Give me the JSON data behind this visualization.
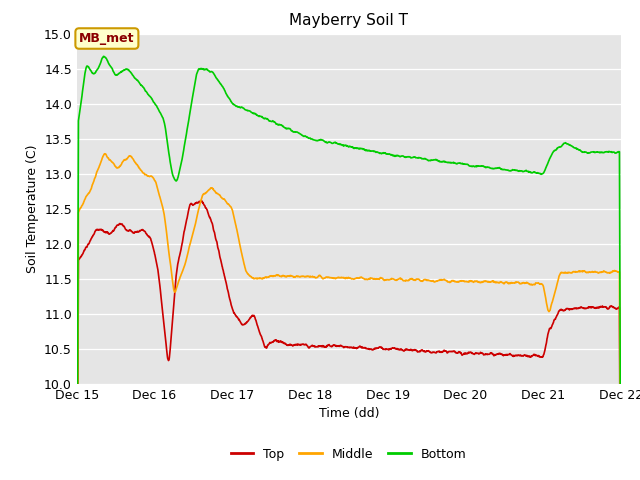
{
  "title": "Mayberry Soil T",
  "xlabel": "Time (dd)",
  "ylabel": "Soil Temperature (C)",
  "ylim": [
    10.0,
    15.0
  ],
  "yticks": [
    10.0,
    10.5,
    11.0,
    11.5,
    12.0,
    12.5,
    13.0,
    13.5,
    14.0,
    14.5,
    15.0
  ],
  "xlim_days": [
    15.0,
    22.0
  ],
  "xtick_days": [
    15,
    16,
    17,
    18,
    19,
    20,
    21,
    22
  ],
  "xtick_labels": [
    "Dec 15",
    "Dec 16",
    "Dec 17",
    "Dec 18",
    "Dec 19",
    "Dec 20",
    "Dec 21",
    "Dec 22"
  ],
  "color_top": "#cc0000",
  "color_middle": "#ffa500",
  "color_bottom": "#00cc00",
  "background_color": "#e5e5e5",
  "legend_label_top": "Top",
  "legend_label_middle": "Middle",
  "legend_label_bottom": "Bottom",
  "annotation_text": "MB_met",
  "annotation_bg": "#ffffcc",
  "annotation_border": "#cc9900",
  "annotation_text_color": "#8b0000",
  "linewidth": 1.2,
  "title_fontsize": 11,
  "figsize": [
    6.4,
    4.8
  ],
  "dpi": 100
}
